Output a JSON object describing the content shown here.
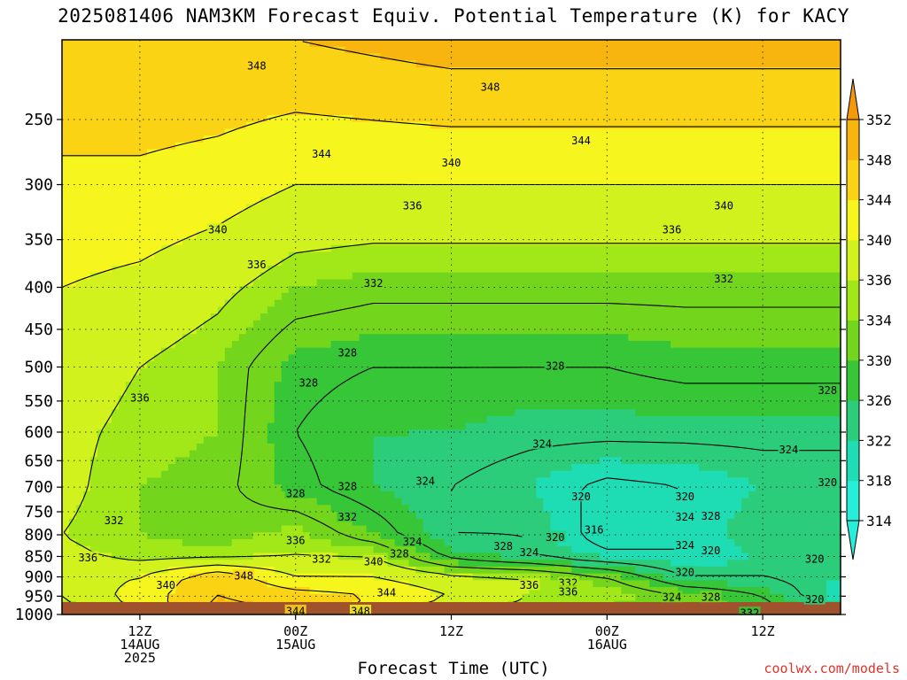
{
  "chart_data": {
    "type": "heatmap",
    "title": "2025081406 NAM3KM Forecast Equiv. Potential Temperature (K) for KACY",
    "xlabel": "Forecast Time (UTC)",
    "ylabel": "",
    "credit": "coolwx.com/models",
    "y_axis": {
      "scale": "log",
      "units": "hPa",
      "inverted": true,
      "range": [
        1000,
        200
      ],
      "ticks": [
        250,
        300,
        350,
        400,
        450,
        500,
        550,
        600,
        650,
        700,
        750,
        800,
        850,
        900,
        950,
        1000
      ]
    },
    "x_axis": {
      "range_hours_from_2025081406": [
        0,
        60
      ],
      "ticks": [
        {
          "hour": 6,
          "lines": [
            "12Z",
            "14AUG",
            "2025"
          ]
        },
        {
          "hour": 18,
          "lines": [
            "00Z",
            "15AUG"
          ]
        },
        {
          "hour": 30,
          "lines": [
            "12Z"
          ]
        },
        {
          "hour": 42,
          "lines": [
            "00Z",
            "16AUG"
          ]
        },
        {
          "hour": 54,
          "lines": [
            "12Z"
          ]
        }
      ]
    },
    "colorbar": {
      "levels": [
        314,
        318,
        322,
        326,
        330,
        334,
        336,
        340,
        344,
        348,
        352
      ],
      "colors": [
        "#27eed9",
        "#1edcb3",
        "#2ccd7a",
        "#36c637",
        "#74d61c",
        "#a2e818",
        "#d2f21e",
        "#f6f61e",
        "#fbd315",
        "#f8b50f",
        "#f3990a"
      ]
    },
    "surface_color": "#a0522d",
    "fields": {
      "pressure_levels": [
        200,
        300,
        400,
        500,
        600,
        700,
        800,
        850,
        900,
        950,
        1000
      ],
      "hours": [
        0,
        6,
        12,
        18,
        24,
        30,
        36,
        42,
        48,
        54,
        60
      ],
      "theta_e": [
        [
          348,
          348,
          348,
          348,
          349,
          350,
          350,
          350,
          350,
          350,
          350
        ],
        [
          343,
          343,
          342,
          340,
          340,
          340,
          340,
          340,
          340,
          340,
          340
        ],
        [
          340,
          339,
          337,
          334,
          333,
          333,
          333,
          333,
          333,
          333,
          333
        ],
        [
          338,
          336,
          334,
          329,
          328,
          328,
          328,
          328,
          329,
          329,
          329
        ],
        [
          337,
          335,
          334,
          328,
          326,
          326,
          325,
          325,
          325,
          325,
          325
        ],
        [
          337,
          334,
          333,
          329,
          326,
          324,
          322,
          319,
          320,
          322,
          322
        ],
        [
          336,
          334,
          333,
          335,
          330,
          324,
          324,
          318,
          320,
          324,
          324
        ],
        [
          337,
          335,
          335,
          336,
          336,
          327,
          324,
          321,
          320,
          322,
          324
        ],
        [
          338,
          340,
          347,
          340,
          340,
          337,
          336,
          332,
          324,
          324,
          322
        ],
        [
          336,
          342,
          348,
          346,
          344,
          340,
          336,
          336,
          332,
          328,
          320
        ],
        [
          334,
          340,
          350,
          348,
          342,
          336,
          334,
          332,
          330,
          330,
          326
        ]
      ]
    },
    "contour_labels": [
      {
        "value": "348",
        "hour": 15,
        "p": 215
      },
      {
        "value": "348",
        "hour": 33,
        "p": 228
      },
      {
        "value": "344",
        "hour": 20,
        "p": 275
      },
      {
        "value": "344",
        "hour": 40,
        "p": 265
      },
      {
        "value": "340",
        "hour": 30,
        "p": 282
      },
      {
        "value": "340",
        "hour": 51,
        "p": 318
      },
      {
        "value": "340",
        "hour": 12,
        "p": 340
      },
      {
        "value": "336",
        "hour": 27,
        "p": 318
      },
      {
        "value": "336",
        "hour": 47,
        "p": 340
      },
      {
        "value": "336",
        "hour": 15,
        "p": 375
      },
      {
        "value": "332",
        "hour": 24,
        "p": 395
      },
      {
        "value": "332",
        "hour": 51,
        "p": 390
      },
      {
        "value": "328",
        "hour": 22,
        "p": 480
      },
      {
        "value": "328",
        "hour": 38,
        "p": 498
      },
      {
        "value": "328",
        "hour": 19,
        "p": 522
      },
      {
        "value": "328",
        "hour": 59,
        "p": 533
      },
      {
        "value": "336",
        "hour": 6,
        "p": 545
      },
      {
        "value": "324",
        "hour": 37,
        "p": 620
      },
      {
        "value": "324",
        "hour": 56,
        "p": 630
      },
      {
        "value": "324",
        "hour": 28,
        "p": 688
      },
      {
        "value": "320",
        "hour": 59,
        "p": 690
      },
      {
        "value": "328",
        "hour": 18,
        "p": 712
      },
      {
        "value": "328",
        "hour": 22,
        "p": 698
      },
      {
        "value": "320",
        "hour": 40,
        "p": 718
      },
      {
        "value": "320",
        "hour": 48,
        "p": 718
      },
      {
        "value": "332",
        "hour": 22,
        "p": 760
      },
      {
        "value": "324",
        "hour": 48,
        "p": 760
      },
      {
        "value": "328",
        "hour": 50,
        "p": 758
      },
      {
        "value": "332",
        "hour": 4,
        "p": 768
      },
      {
        "value": "316",
        "hour": 41,
        "p": 788
      },
      {
        "value": "320",
        "hour": 38,
        "p": 805
      },
      {
        "value": "336",
        "hour": 18,
        "p": 812
      },
      {
        "value": "324",
        "hour": 27,
        "p": 815
      },
      {
        "value": "328",
        "hour": 34,
        "p": 825
      },
      {
        "value": "324",
        "hour": 48,
        "p": 823
      },
      {
        "value": "320",
        "hour": 50,
        "p": 835
      },
      {
        "value": "328",
        "hour": 26,
        "p": 843
      },
      {
        "value": "324",
        "hour": 36,
        "p": 840
      },
      {
        "value": "332",
        "hour": 20,
        "p": 855
      },
      {
        "value": "340",
        "hour": 24,
        "p": 862
      },
      {
        "value": "320",
        "hour": 58,
        "p": 855
      },
      {
        "value": "336",
        "hour": 2,
        "p": 852
      },
      {
        "value": "348",
        "hour": 14,
        "p": 897
      },
      {
        "value": "320",
        "hour": 48,
        "p": 888
      },
      {
        "value": "332",
        "hour": 39,
        "p": 915
      },
      {
        "value": "336",
        "hour": 36,
        "p": 920
      },
      {
        "value": "340",
        "hour": 8,
        "p": 920
      },
      {
        "value": "336",
        "hour": 39,
        "p": 937
      },
      {
        "value": "344",
        "hour": 25,
        "p": 940
      },
      {
        "value": "324",
        "hour": 47,
        "p": 952
      },
      {
        "value": "328",
        "hour": 50,
        "p": 952
      },
      {
        "value": "320",
        "hour": 58,
        "p": 958
      },
      {
        "value": "332",
        "hour": 53,
        "p": 995
      },
      {
        "value": "344",
        "hour": 18,
        "p": 990
      },
      {
        "value": "348",
        "hour": 23,
        "p": 990
      }
    ]
  }
}
